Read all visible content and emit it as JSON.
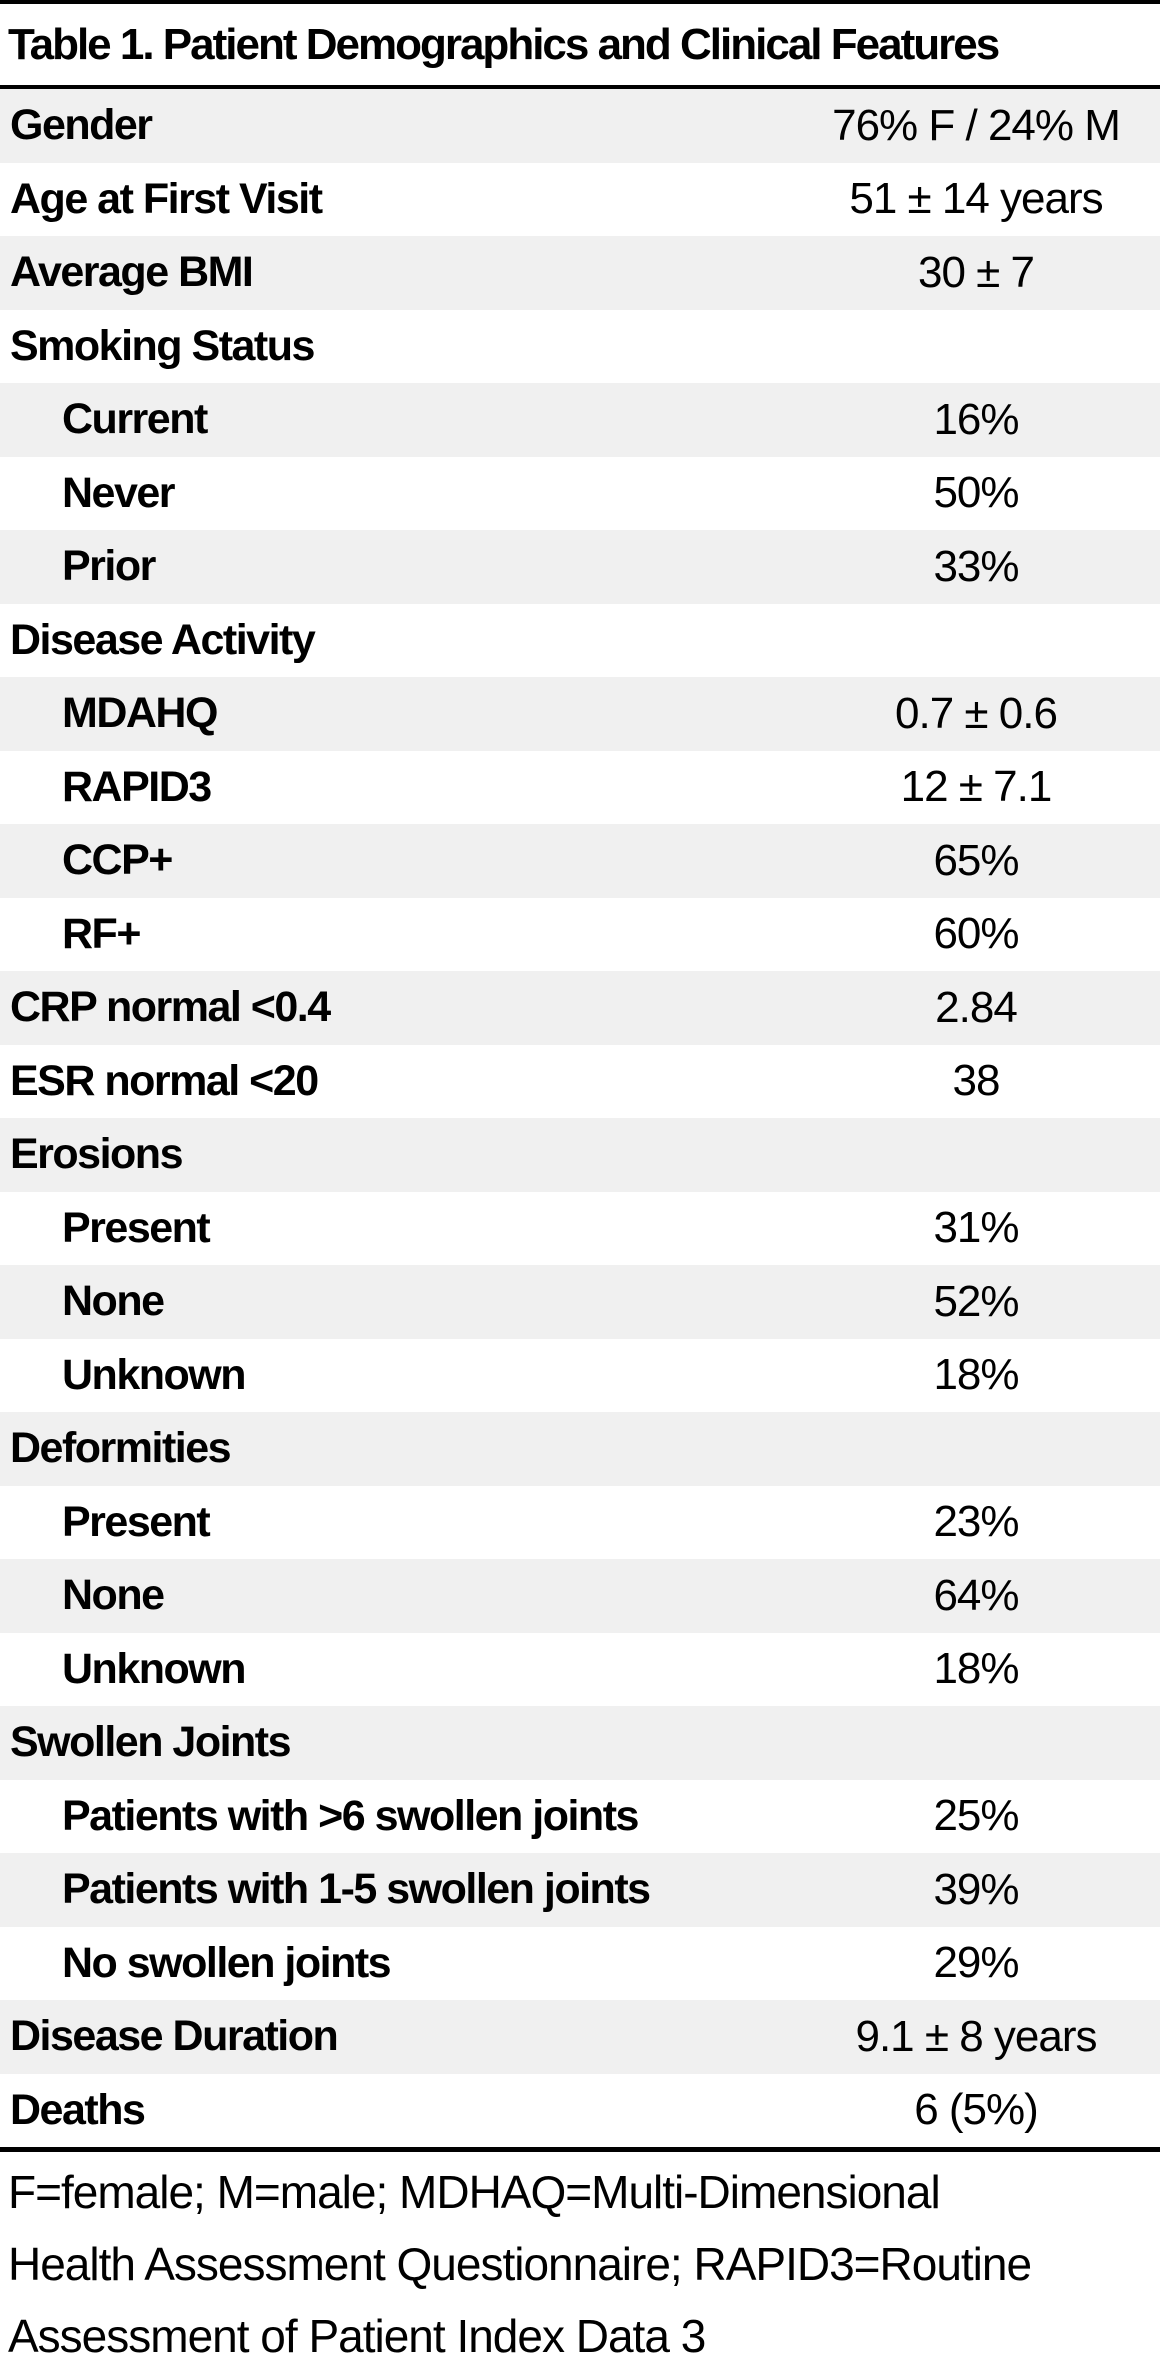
{
  "title": "Table 1. Patient Demographics and Clinical Features",
  "colors": {
    "row_shade": "#f0f0f0",
    "rule": "#000000",
    "text": "#000000",
    "background": "#ffffff"
  },
  "table": {
    "rows": [
      {
        "label": "Gender",
        "value": "76% F / 24% M",
        "indent": false
      },
      {
        "label": "Age at First Visit",
        "value": "51 ± 14 years",
        "indent": false
      },
      {
        "label": "Average BMI",
        "value": "30 ± 7",
        "indent": false
      },
      {
        "label": "Smoking Status",
        "value": "",
        "indent": false
      },
      {
        "label": "Current",
        "value": "16%",
        "indent": true
      },
      {
        "label": "Never",
        "value": "50%",
        "indent": true
      },
      {
        "label": "Prior",
        "value": "33%",
        "indent": true
      },
      {
        "label": "Disease Activity",
        "value": "",
        "indent": false
      },
      {
        "label": "MDAHQ",
        "value": "0.7 ± 0.6",
        "indent": true
      },
      {
        "label": "RAPID3",
        "value": "12 ± 7.1",
        "indent": true
      },
      {
        "label": "CCP+",
        "value": "65%",
        "indent": true
      },
      {
        "label": "RF+",
        "value": "60%",
        "indent": true
      },
      {
        "label": "CRP normal <0.4",
        "value": "2.84",
        "indent": false
      },
      {
        "label": "ESR normal <20",
        "value": "38",
        "indent": false
      },
      {
        "label": "Erosions",
        "value": "",
        "indent": false
      },
      {
        "label": "Present",
        "value": "31%",
        "indent": true
      },
      {
        "label": "None",
        "value": "52%",
        "indent": true
      },
      {
        "label": "Unknown",
        "value": "18%",
        "indent": true
      },
      {
        "label": "Deformities",
        "value": "",
        "indent": false
      },
      {
        "label": "Present",
        "value": "23%",
        "indent": true
      },
      {
        "label": "None",
        "value": "64%",
        "indent": true
      },
      {
        "label": "Unknown",
        "value": "18%",
        "indent": true
      },
      {
        "label": "Swollen Joints",
        "value": "",
        "indent": false
      },
      {
        "label": "Patients with >6 swollen joints",
        "value": "25%",
        "indent": true
      },
      {
        "label": "Patients with 1-5 swollen joints",
        "value": "39%",
        "indent": true
      },
      {
        "label": "No swollen joints",
        "value": "29%",
        "indent": true
      },
      {
        "label": "Disease Duration",
        "value": "9.1 ± 8 years",
        "indent": false
      },
      {
        "label": "Deaths",
        "value": "6 (5%)",
        "indent": false
      }
    ]
  },
  "footnote": {
    "lines": [
      "F=female; M=male; MDHAQ=Multi-Dimensional",
      "Health Assessment Questionnaire; RAPID3=Routine",
      "Assessment of Patient Index Data 3"
    ]
  }
}
